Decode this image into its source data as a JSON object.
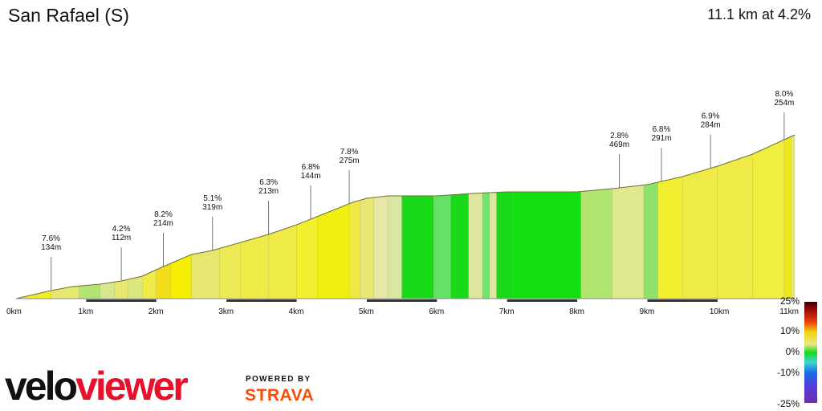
{
  "header": {
    "title": "San Rafael (S)",
    "summary": "11.1 km at 4.2%"
  },
  "chart_data": {
    "type": "area",
    "title": "San Rafael (S)",
    "xlabel": "",
    "ylabel": "",
    "xlim": [
      0,
      11.1
    ],
    "x_ticks": [
      "0km",
      "1km",
      "2km",
      "3km",
      "4km",
      "5km",
      "6km",
      "7km",
      "8km",
      "9km",
      "10km",
      "11km"
    ],
    "profile_points": [
      [
        0.0,
        0
      ],
      [
        0.5,
        10
      ],
      [
        0.8,
        15
      ],
      [
        1.2,
        18
      ],
      [
        1.5,
        22
      ],
      [
        1.8,
        28
      ],
      [
        2.1,
        40
      ],
      [
        2.5,
        55
      ],
      [
        2.8,
        60
      ],
      [
        3.2,
        70
      ],
      [
        3.6,
        80
      ],
      [
        4.0,
        92
      ],
      [
        4.4,
        106
      ],
      [
        4.8,
        120
      ],
      [
        5.0,
        125
      ],
      [
        5.3,
        128
      ],
      [
        6.0,
        128
      ],
      [
        6.5,
        131
      ],
      [
        7.0,
        133
      ],
      [
        8.0,
        133
      ],
      [
        8.5,
        137
      ],
      [
        9.0,
        142
      ],
      [
        9.5,
        152
      ],
      [
        10.0,
        165
      ],
      [
        10.5,
        180
      ],
      [
        11.0,
        200
      ],
      [
        11.1,
        204
      ]
    ],
    "segments": [
      [
        0.0,
        0.3,
        "#f1ec30"
      ],
      [
        0.3,
        0.5,
        "#f4ef20"
      ],
      [
        0.5,
        0.9,
        "#e6e770"
      ],
      [
        0.9,
        1.2,
        "#b1e572"
      ],
      [
        1.2,
        1.4,
        "#d9e690"
      ],
      [
        1.4,
        1.6,
        "#e6e770"
      ],
      [
        1.6,
        1.8,
        "#dde780"
      ],
      [
        1.8,
        2.0,
        "#eeeb48"
      ],
      [
        2.0,
        2.2,
        "#f1dd1a"
      ],
      [
        2.2,
        2.5,
        "#f4ef00"
      ],
      [
        2.5,
        2.9,
        "#e6e770"
      ],
      [
        2.9,
        3.2,
        "#ebea55"
      ],
      [
        3.2,
        3.6,
        "#eeeb48"
      ],
      [
        3.6,
        4.0,
        "#eeeb48"
      ],
      [
        4.0,
        4.3,
        "#f1ef30"
      ],
      [
        4.3,
        4.75,
        "#f1ef10"
      ],
      [
        4.75,
        4.9,
        "#eee840"
      ],
      [
        4.9,
        5.1,
        "#e6e770"
      ],
      [
        5.1,
        5.3,
        "#e6e7a8"
      ],
      [
        5.3,
        5.5,
        "#d8e8a0"
      ],
      [
        5.5,
        5.95,
        "#19d919"
      ],
      [
        5.95,
        6.2,
        "#66e266"
      ],
      [
        6.2,
        6.45,
        "#19d919"
      ],
      [
        6.45,
        6.65,
        "#dde7a0"
      ],
      [
        6.65,
        6.75,
        "#6ee66e"
      ],
      [
        6.75,
        6.85,
        "#dde7a0"
      ],
      [
        6.85,
        7.05,
        "#19d919"
      ],
      [
        7.05,
        8.05,
        "#14e014"
      ],
      [
        8.05,
        8.5,
        "#b1e572"
      ],
      [
        8.5,
        8.95,
        "#dfe78f"
      ],
      [
        8.95,
        9.15,
        "#8ee26c"
      ],
      [
        9.15,
        9.5,
        "#f1ef30"
      ],
      [
        9.5,
        10.0,
        "#eeeb48"
      ],
      [
        10.0,
        10.5,
        "#eeeb48"
      ],
      [
        10.5,
        10.95,
        "#f0ee40"
      ],
      [
        10.95,
        11.05,
        "#eee820"
      ],
      [
        11.05,
        11.1,
        "#e6e770"
      ]
    ],
    "annotations": [
      {
        "km": 0.5,
        "grade": "7.6%",
        "length": "134m"
      },
      {
        "km": 1.5,
        "grade": "4.2%",
        "length": "112m"
      },
      {
        "km": 2.1,
        "grade": "8.2%",
        "length": "214m"
      },
      {
        "km": 2.8,
        "grade": "5.1%",
        "length": "319m"
      },
      {
        "km": 3.6,
        "grade": "6.3%",
        "length": "213m"
      },
      {
        "km": 4.2,
        "grade": "6.8%",
        "length": "144m"
      },
      {
        "km": 4.75,
        "grade": "7.8%",
        "length": "275m"
      },
      {
        "km": 8.6,
        "grade": "2.8%",
        "length": "469m"
      },
      {
        "km": 9.2,
        "grade": "6.8%",
        "length": "291m"
      },
      {
        "km": 9.9,
        "grade": "6.9%",
        "length": "284m"
      },
      {
        "km": 10.95,
        "grade": "8.0%",
        "length": "254m"
      }
    ],
    "legend": {
      "placement": "bottom-right",
      "labels": [
        "25%",
        "10%",
        "0%",
        "-10%",
        "-25%"
      ]
    }
  },
  "branding": {
    "logo_part1": "velo",
    "logo_part2": "viewer",
    "powered_by": "POWERED BY",
    "strava": "STRAVA",
    "logo_color_dark": "#111111",
    "logo_color_red": "#e8102a",
    "strava_color": "#fc4c02"
  }
}
